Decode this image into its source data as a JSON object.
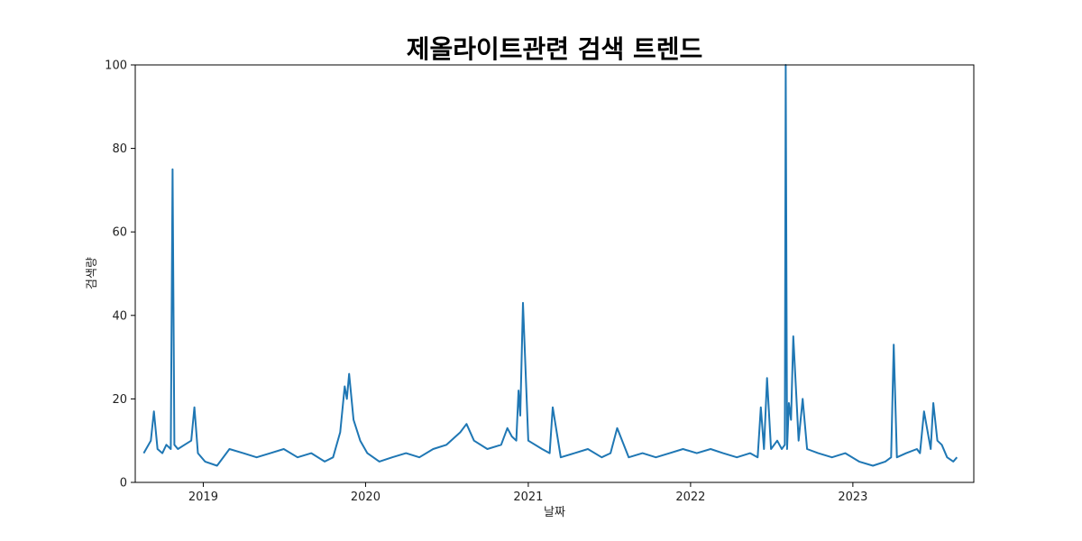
{
  "chart_data": {
    "type": "line",
    "title": "제올라이트관련 검색 트렌드",
    "xlabel": "날짜",
    "ylabel": "검색량",
    "x_ticks": [
      "2019",
      "2020",
      "2021",
      "2022",
      "2023"
    ],
    "y_ticks": [
      0,
      20,
      40,
      60,
      80,
      100
    ],
    "xlim": [
      "2018-08-01",
      "2023-09-30"
    ],
    "ylim": [
      0,
      100
    ],
    "grid": false,
    "line_color": "#1f77b4",
    "series": [
      {
        "x": [
          "2018-08-20",
          "2018-09-05",
          "2018-09-12",
          "2018-09-20",
          "2018-10-01",
          "2018-10-10",
          "2018-10-20",
          "2018-10-24",
          "2018-10-28",
          "2018-11-05",
          "2018-11-20",
          "2018-12-05",
          "2018-12-12",
          "2018-12-20",
          "2019-01-05",
          "2019-02-01",
          "2019-03-01",
          "2019-04-01",
          "2019-05-01",
          "2019-06-01",
          "2019-07-01",
          "2019-08-01",
          "2019-09-01",
          "2019-10-01",
          "2019-10-20",
          "2019-11-05",
          "2019-11-15",
          "2019-11-20",
          "2019-11-25",
          "2019-12-05",
          "2019-12-20",
          "2020-01-05",
          "2020-02-01",
          "2020-03-01",
          "2020-04-01",
          "2020-05-01",
          "2020-06-01",
          "2020-07-01",
          "2020-08-01",
          "2020-08-15",
          "2020-09-01",
          "2020-10-01",
          "2020-11-01",
          "2020-11-15",
          "2020-11-25",
          "2020-12-05",
          "2020-12-10",
          "2020-12-14",
          "2020-12-20",
          "2021-01-01",
          "2021-02-01",
          "2021-02-18",
          "2021-02-25",
          "2021-03-15",
          "2021-04-15",
          "2021-05-15",
          "2021-06-15",
          "2021-07-05",
          "2021-07-20",
          "2021-08-15",
          "2021-09-15",
          "2021-10-15",
          "2021-11-15",
          "2021-12-15",
          "2022-01-15",
          "2022-02-15",
          "2022-03-15",
          "2022-04-15",
          "2022-05-15",
          "2022-06-01",
          "2022-06-08",
          "2022-06-15",
          "2022-06-22",
          "2022-07-01",
          "2022-07-15",
          "2022-07-25",
          "2022-08-01",
          "2022-08-03",
          "2022-08-06",
          "2022-08-10",
          "2022-08-15",
          "2022-08-20",
          "2022-09-01",
          "2022-09-10",
          "2022-09-20",
          "2022-10-15",
          "2022-11-15",
          "2022-12-15",
          "2023-01-15",
          "2023-02-15",
          "2023-03-15",
          "2023-03-28",
          "2023-04-03",
          "2023-04-10",
          "2023-05-01",
          "2023-05-25",
          "2023-06-01",
          "2023-06-10",
          "2023-06-25",
          "2023-07-01",
          "2023-07-10",
          "2023-07-20",
          "2023-08-01",
          "2023-08-15",
          "2023-08-23"
        ],
        "y": [
          7,
          10,
          17,
          8,
          7,
          9,
          8,
          75,
          9,
          8,
          9,
          10,
          18,
          7,
          5,
          4,
          8,
          7,
          6,
          7,
          8,
          6,
          7,
          5,
          6,
          12,
          23,
          20,
          26,
          15,
          10,
          7,
          5,
          6,
          7,
          6,
          8,
          9,
          12,
          14,
          10,
          8,
          9,
          13,
          11,
          10,
          22,
          16,
          43,
          10,
          8,
          7,
          18,
          6,
          7,
          8,
          6,
          7,
          13,
          6,
          7,
          6,
          7,
          8,
          7,
          8,
          7,
          6,
          7,
          6,
          18,
          8,
          25,
          8,
          10,
          8,
          9,
          100,
          8,
          19,
          15,
          35,
          10,
          20,
          8,
          7,
          6,
          7,
          5,
          4,
          5,
          6,
          33,
          6,
          7,
          8,
          7,
          17,
          8,
          19,
          10,
          9,
          6,
          5,
          6
        ]
      }
    ]
  }
}
